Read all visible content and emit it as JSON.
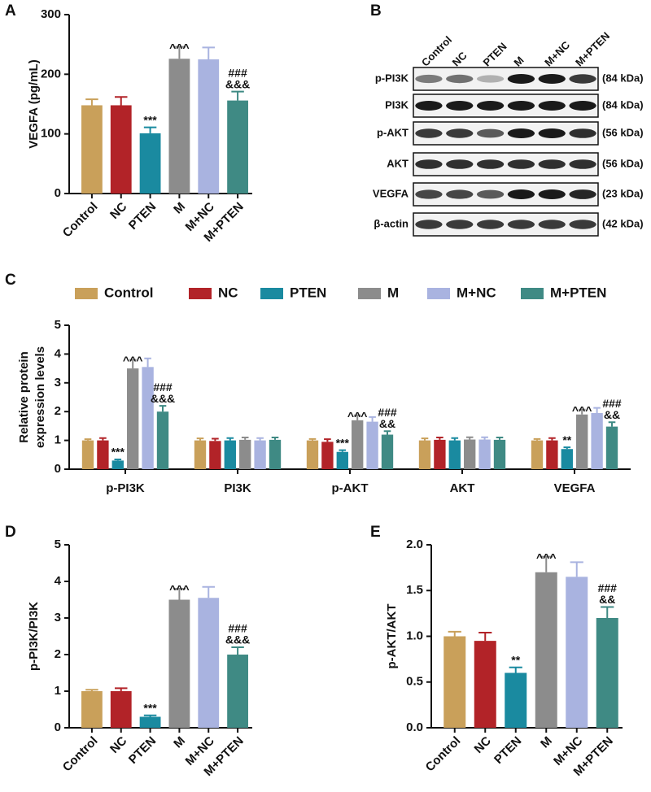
{
  "chart_data": [
    {
      "type": "bar",
      "panel": "A",
      "ylabel": "VEGFA (pg/mL)",
      "categories": [
        "Control",
        "NC",
        "PTEN",
        "M",
        "M+NC",
        "M+PTEN"
      ],
      "values": [
        148,
        148,
        101,
        226,
        225,
        156
      ],
      "errors": [
        10,
        14,
        10,
        20,
        20,
        15
      ],
      "colors": [
        "#c9a05a",
        "#b22328",
        "#1a8aa0",
        "#8c8c8c",
        "#a9b3e0",
        "#3f8a84"
      ],
      "annotations": [
        null,
        null,
        "***",
        "^^^",
        null,
        [
          "###",
          "&&&"
        ]
      ],
      "ylim": [
        0,
        300
      ],
      "yticks": [
        0,
        100,
        200,
        300
      ]
    },
    {
      "type": "grouped-bar",
      "panel": "C",
      "ylabel": [
        "Relative protein",
        "expression levels"
      ],
      "categories": [
        "p-PI3K",
        "PI3K",
        "p-AKT",
        "AKT",
        "VEGFA"
      ],
      "legend": "top",
      "series": [
        {
          "name": "Control",
          "color": "#c9a05a",
          "values": [
            1.0,
            1.0,
            1.0,
            1.0,
            1.0
          ],
          "errors": [
            0.04,
            0.07,
            0.05,
            0.07,
            0.05
          ],
          "annotations": [
            null,
            null,
            null,
            null,
            null
          ]
        },
        {
          "name": "NC",
          "color": "#b22328",
          "values": [
            1.0,
            0.98,
            0.95,
            1.02,
            1.0
          ],
          "errors": [
            0.08,
            0.08,
            0.09,
            0.08,
            0.08
          ],
          "annotations": [
            null,
            null,
            null,
            null,
            null
          ]
        },
        {
          "name": "PTEN",
          "color": "#1a8aa0",
          "values": [
            0.3,
            1.0,
            0.6,
            1.0,
            0.7
          ],
          "errors": [
            0.04,
            0.08,
            0.06,
            0.08,
            0.06
          ],
          "annotations": [
            "***",
            null,
            "***",
            null,
            "**"
          ]
        },
        {
          "name": "M",
          "color": "#8c8c8c",
          "values": [
            3.5,
            1.02,
            1.7,
            1.03,
            1.9
          ],
          "errors": [
            0.3,
            0.08,
            0.17,
            0.08,
            0.17
          ],
          "annotations": [
            "^^^",
            null,
            "^^^",
            null,
            "^^^"
          ]
        },
        {
          "name": "M+NC",
          "color": "#a9b3e0",
          "values": [
            3.55,
            1.0,
            1.65,
            1.03,
            1.95
          ],
          "errors": [
            0.3,
            0.08,
            0.16,
            0.08,
            0.18
          ],
          "annotations": [
            null,
            null,
            null,
            null,
            null
          ]
        },
        {
          "name": "M+PTEN",
          "color": "#3f8a84",
          "values": [
            2.0,
            1.02,
            1.2,
            1.02,
            1.48
          ],
          "errors": [
            0.2,
            0.08,
            0.12,
            0.08,
            0.15
          ],
          "annotations": [
            [
              "###",
              "&&&"
            ],
            null,
            [
              "###",
              "&&"
            ],
            null,
            [
              "###",
              "&&"
            ]
          ]
        }
      ],
      "ylim": [
        0,
        5
      ],
      "yticks": [
        0,
        1,
        2,
        3,
        4,
        5
      ]
    },
    {
      "type": "bar",
      "panel": "D",
      "ylabel": "p-PI3K/PI3K",
      "categories": [
        "Control",
        "NC",
        "PTEN",
        "M",
        "M+NC",
        "M+PTEN"
      ],
      "values": [
        1.0,
        1.0,
        0.3,
        3.5,
        3.55,
        2.0
      ],
      "errors": [
        0.04,
        0.08,
        0.04,
        0.3,
        0.3,
        0.2
      ],
      "colors": [
        "#c9a05a",
        "#b22328",
        "#1a8aa0",
        "#8c8c8c",
        "#a9b3e0",
        "#3f8a84"
      ],
      "annotations": [
        null,
        null,
        "***",
        "^^^",
        null,
        [
          "###",
          "&&&"
        ]
      ],
      "ylim": [
        0,
        5
      ],
      "yticks": [
        0,
        1,
        2,
        3,
        4,
        5
      ]
    },
    {
      "type": "bar",
      "panel": "E",
      "ylabel": "p-AKT/AKT",
      "categories": [
        "Control",
        "NC",
        "PTEN",
        "M",
        "M+NC",
        "M+PTEN"
      ],
      "values": [
        1.0,
        0.95,
        0.6,
        1.7,
        1.65,
        1.2
      ],
      "errors": [
        0.05,
        0.09,
        0.06,
        0.17,
        0.16,
        0.12
      ],
      "colors": [
        "#c9a05a",
        "#b22328",
        "#1a8aa0",
        "#8c8c8c",
        "#a9b3e0",
        "#3f8a84"
      ],
      "annotations": [
        null,
        null,
        "**",
        "^^^",
        null,
        [
          "###",
          "&&"
        ]
      ],
      "ylim": [
        0,
        2
      ],
      "yticks": [
        {
          "value": 0,
          "label": "0.0"
        },
        0.5,
        {
          "value": 1,
          "label": "1.0"
        },
        1.5,
        {
          "value": 2,
          "label": "2.0"
        }
      ]
    }
  ],
  "blot": {
    "panel": "B",
    "lanes": [
      "Control",
      "NC",
      "PTEN",
      "M",
      "M+NC",
      "M+PTEN"
    ],
    "rows": [
      {
        "protein": "p-PI3K",
        "size": "(84 kDa)"
      },
      {
        "protein": "PI3K",
        "size": "(84 kDa)"
      },
      {
        "protein": "p-AKT",
        "size": "(56 kDa)"
      },
      {
        "protein": "AKT",
        "size": "(56 kDa)"
      },
      {
        "protein": "VEGFA",
        "size": "(23 kDa)"
      },
      {
        "protein": "β-actin",
        "size": "(42 kDa)"
      }
    ]
  }
}
